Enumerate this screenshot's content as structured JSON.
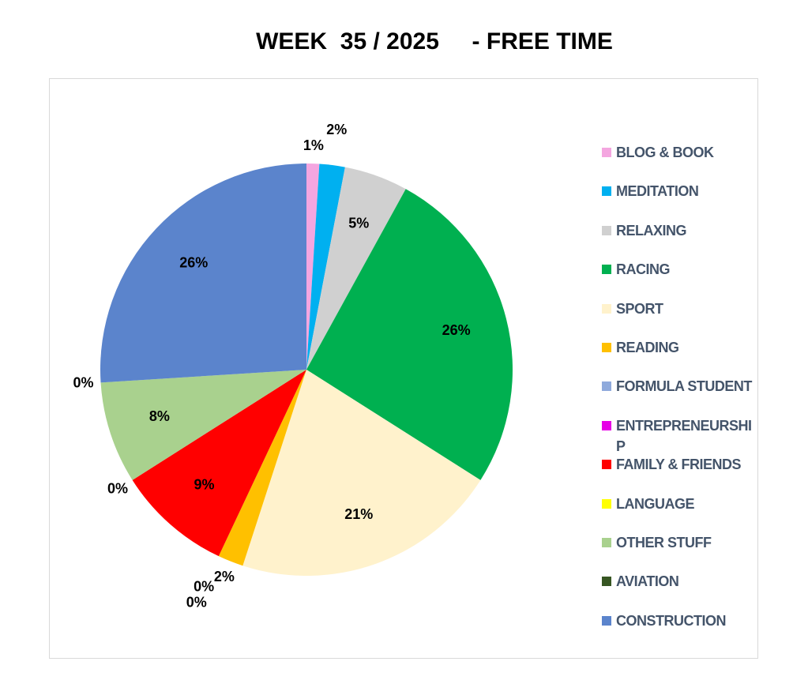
{
  "chart_data": {
    "type": "pie",
    "title": "WEEK  35 / 2025     - FREE TIME",
    "categories": [
      "BLOG & BOOK",
      "MEDITATION",
      "RELAXING",
      "RACING",
      "SPORT",
      "READING",
      "FORMULA STUDENT",
      "ENTREPRENEURSHIP",
      "FAMILY & FRIENDS",
      "LANGUAGE",
      "OTHER STUFF",
      "AVIATION",
      "CONSTRUCTION"
    ],
    "values": [
      1,
      2,
      5,
      26,
      21,
      2,
      0,
      0,
      9,
      0,
      8,
      0,
      26
    ],
    "value_labels": [
      "1%",
      "2%",
      "5%",
      "26%",
      "21%",
      "2%",
      "0%",
      "0%",
      "9%",
      "0%",
      "8%",
      "0%",
      "26%"
    ],
    "colors": [
      "#f4a6e0",
      "#00b0f0",
      "#d0d0d0",
      "#00b050",
      "#fff2cc",
      "#ffc000",
      "#8faadc",
      "#e600e6",
      "#ff0000",
      "#ffff00",
      "#a9d18e",
      "#375623",
      "#5b84cc"
    ],
    "legend": "right"
  }
}
